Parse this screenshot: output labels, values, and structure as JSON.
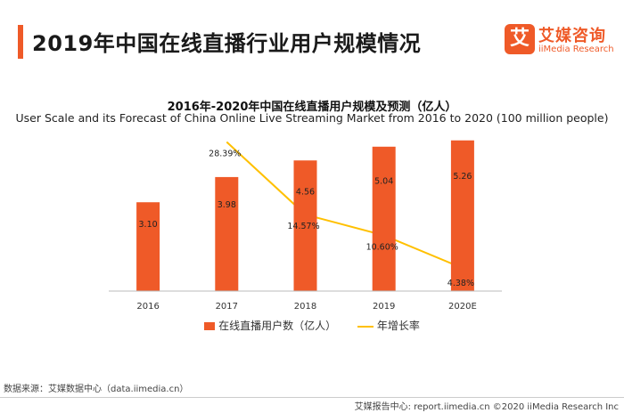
{
  "header": {
    "title": "2019年中国在线直播行业用户规模情况"
  },
  "brand": {
    "cn": "艾媒咨询",
    "en": "iiMedia Research",
    "mark": "艾",
    "color": "#ef5a28"
  },
  "footer": {
    "source": "数据来源：艾媒数据中心（data.iimedia.cn）",
    "copyright": "艾媒报告中心: report.iimedia.cn  ©2020  iiMedia Research  Inc"
  },
  "chart_data": {
    "type": "bar",
    "title": "2016年-2020年中国在线直播用户规模及预测（亿人）",
    "subtitle": "User Scale and its Forecast of China Online Live Streaming Market from 2016 to 2020 (100 million people)",
    "categories": [
      "2016",
      "2017",
      "2018",
      "2019",
      "2020E"
    ],
    "series": [
      {
        "name": "在线直播用户数（亿人）",
        "type": "bar",
        "color": "#ef5a28",
        "values": [
          3.1,
          3.98,
          4.56,
          5.04,
          5.26
        ],
        "labels": [
          "3.10",
          "3.98",
          "4.56",
          "5.04",
          "5.26"
        ]
      },
      {
        "name": "年增长率",
        "type": "line",
        "color": "#ffc000",
        "values": [
          null,
          28.39,
          14.57,
          10.6,
          4.38
        ],
        "labels": [
          "",
          "28.39%",
          "14.57%",
          "10.60%",
          "4.38%"
        ]
      }
    ],
    "ylim": [
      0,
      5.5
    ],
    "y2lim": [
      0,
      30
    ],
    "grid": false,
    "legend": "bottom"
  }
}
